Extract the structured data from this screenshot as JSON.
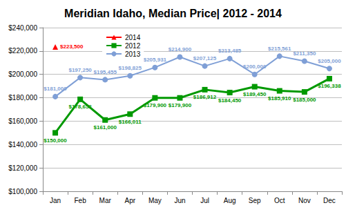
{
  "chart_data": {
    "type": "line",
    "title": "Meridian Idaho, Median Price| 2012 - 2014",
    "categories": [
      "Jan",
      "Feb",
      "Mar",
      "Apr",
      "May",
      "Jun",
      "Jul",
      "Aug",
      "Sep",
      "Oct",
      "Nov",
      "Dec"
    ],
    "series": [
      {
        "name": "2014",
        "color": "#ff0000",
        "marker": "triangle",
        "values": [
          223500,
          null,
          null,
          null,
          null,
          null,
          null,
          null,
          null,
          null,
          null,
          null
        ],
        "value_labels": [
          "$223,500",
          null,
          null,
          null,
          null,
          null,
          null,
          null,
          null,
          null,
          null,
          null
        ]
      },
      {
        "name": "2012",
        "color": "#009900",
        "marker": "square",
        "values": [
          150000,
          178652,
          161000,
          166011,
          179900,
          179900,
          186912,
          184450,
          189450,
          185910,
          185000,
          196338
        ],
        "value_labels": [
          "$150,000",
          "$178,652",
          "$161,000",
          "$166,011",
          "$179,900",
          "$179,900",
          "$186,912",
          "$184,450",
          "$189,450",
          "$185,910",
          "$185,000",
          "$196,338"
        ]
      },
      {
        "name": "2013",
        "color": "#7f9fd6",
        "marker": "circle",
        "values": [
          181000,
          197250,
          195455,
          198825,
          205931,
          214900,
          207125,
          213485,
          200000,
          215561,
          211350,
          205000
        ],
        "value_labels": [
          "$181,000",
          "$197,250",
          "$195,455",
          "$198,825",
          "$205,931",
          "$214,900",
          "$207,125",
          "$213,485",
          "$200,000",
          "$215,561",
          "$211,350",
          "$205,000"
        ]
      }
    ],
    "ylim": [
      100000,
      240000
    ],
    "yticks": [
      {
        "value": 100000,
        "label": "$100,000"
      },
      {
        "value": 120000,
        "label": "$120,000"
      },
      {
        "value": 140000,
        "label": "$140,000"
      },
      {
        "value": 160000,
        "label": "$160,000"
      },
      {
        "value": 180000,
        "label": "$180,000"
      },
      {
        "value": 200000,
        "label": "$200,000"
      },
      {
        "value": 220000,
        "label": "$220,000"
      },
      {
        "value": 240000,
        "label": "$240,000"
      }
    ],
    "grid": true,
    "legend": "upper left",
    "data_labels": true
  }
}
